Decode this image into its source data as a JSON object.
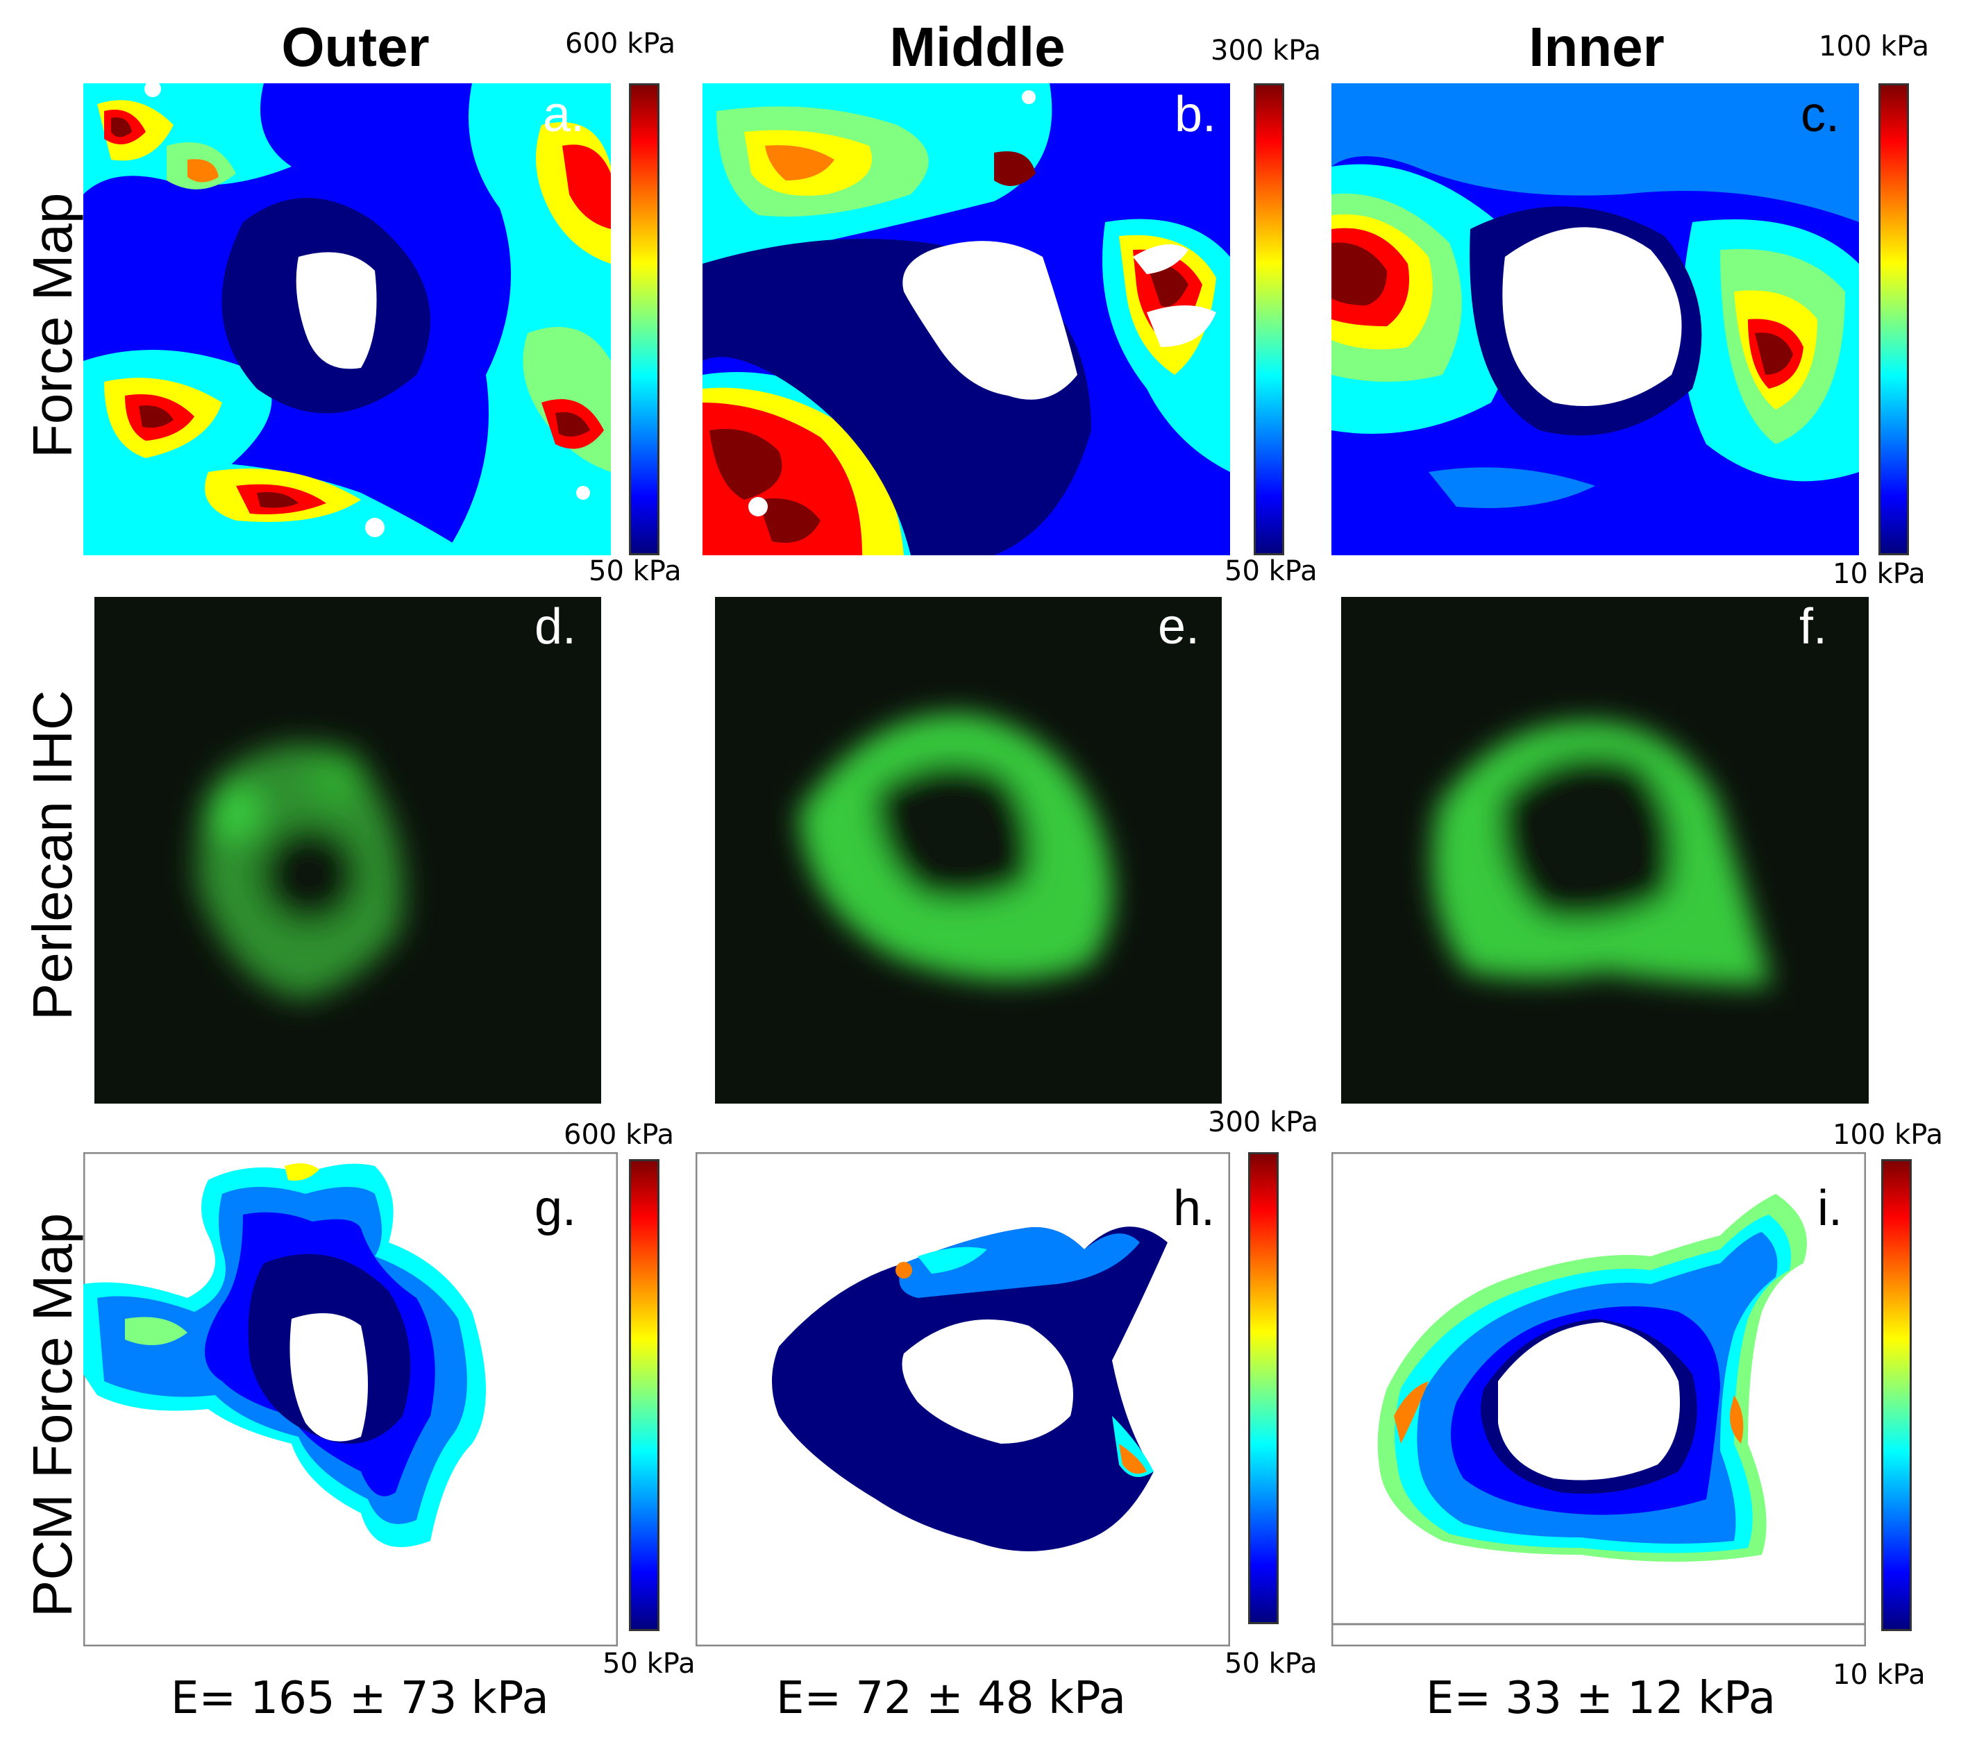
{
  "columns": [
    "Outer",
    "Middle",
    "Inner"
  ],
  "rows": [
    "Force Map",
    "Perlecan IHC",
    "PCM Force Map"
  ],
  "panels": {
    "force_map": [
      {
        "letter": "a.",
        "cb_max": "600 kPa",
        "cb_min": "50 kPa"
      },
      {
        "letter": "b.",
        "cb_max": "300 kPa",
        "cb_min": "50 kPa"
      },
      {
        "letter": "c.",
        "cb_max": "100 kPa",
        "cb_min": "10 kPa"
      }
    ],
    "ihc": [
      {
        "letter": "d."
      },
      {
        "letter": "e."
      },
      {
        "letter": "f."
      }
    ],
    "pcm_force_map": [
      {
        "letter": "g.",
        "cb_max": "600 kPa",
        "cb_min": "50 kPa",
        "modulus": "E= 165 ± 73 kPa"
      },
      {
        "letter": "h.",
        "cb_max": "300 kPa",
        "cb_min": "50 kPa",
        "modulus": "E= 72 ± 48 kPa"
      },
      {
        "letter": "i.",
        "cb_max": "100 kPa",
        "cb_min": "10 kPa",
        "modulus": "E= 33 ± 12 kPa"
      }
    ]
  },
  "colors": {
    "jet_dark_red": "#7f0000",
    "jet_red": "#ff0000",
    "jet_yellow": "#ffff00",
    "jet_cyan": "#00ffff",
    "jet_blue": "#0000ff",
    "jet_navy": "#00007f",
    "ihc_green": "#39c93c",
    "ihc_background": "#0b120b"
  }
}
